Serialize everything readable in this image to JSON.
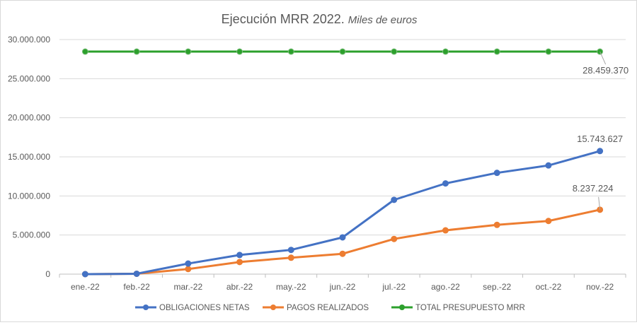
{
  "chart_data": {
    "type": "line",
    "title": "Ejecución MRR 2022.",
    "subtitle": "Miles de euros",
    "categories": [
      "ene.-22",
      "feb.-22",
      "mar.-22",
      "abr.-22",
      "may.-22",
      "jun.-22",
      "jul.-22",
      "ago.-22",
      "sep.-22",
      "oct.-22",
      "nov.-22"
    ],
    "ylim": [
      0,
      30000000
    ],
    "yticks": [
      0,
      5000000,
      10000000,
      15000000,
      20000000,
      25000000,
      30000000
    ],
    "ytick_labels": [
      "0",
      "5.000.000",
      "10.000.000",
      "15.000.000",
      "20.000.000",
      "25.000.000",
      "30.000.000"
    ],
    "grid": true,
    "legend_position": "bottom",
    "series": [
      {
        "name": "OBLIGACIONES NETAS",
        "color": "#4472c4",
        "values": [
          0,
          50000,
          1350000,
          2450000,
          3100000,
          4700000,
          9500000,
          11600000,
          12950000,
          13900000,
          15743627
        ],
        "end_label": "15.743.627"
      },
      {
        "name": "PAGOS REALIZADOS",
        "color": "#ed7d31",
        "values": [
          0,
          50000,
          650000,
          1550000,
          2100000,
          2600000,
          4500000,
          5600000,
          6300000,
          6800000,
          8237224
        ],
        "end_label": "8.237.224"
      },
      {
        "name": "TOTAL PRESUPUESTO MRR",
        "color": "#2ca02c",
        "values": [
          28459370,
          28459370,
          28459370,
          28459370,
          28459370,
          28459370,
          28459370,
          28459370,
          28459370,
          28459370,
          28459370
        ],
        "end_label": "28.459.370"
      }
    ]
  }
}
